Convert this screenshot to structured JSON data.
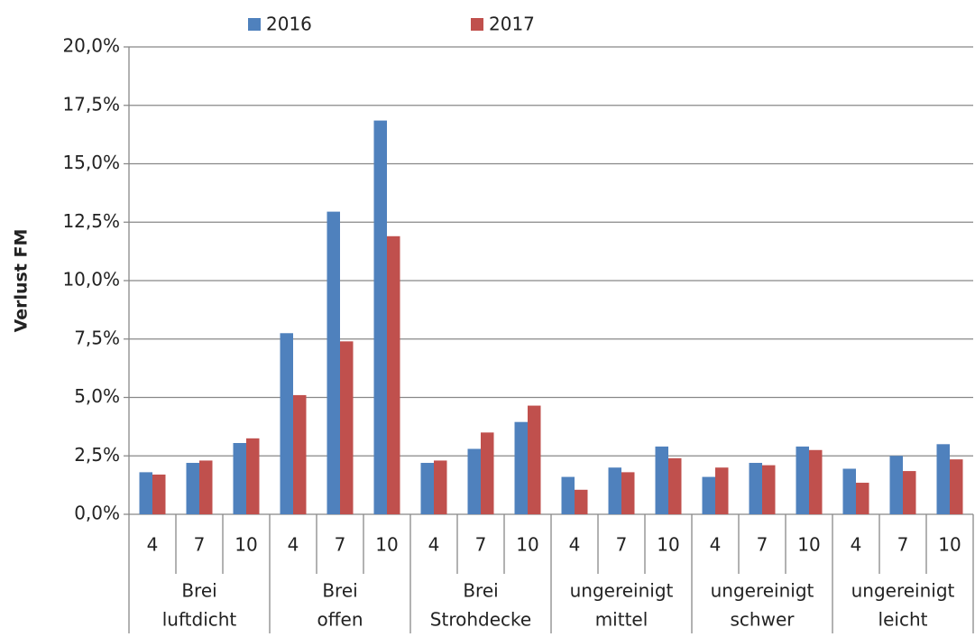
{
  "chart_data": {
    "type": "bar",
    "y_label": "Verlust FM",
    "categories": [
      "4",
      "7",
      "10",
      "4",
      "7",
      "10",
      "4",
      "7",
      "10",
      "4",
      "7",
      "10",
      "4",
      "7",
      "10",
      "4",
      "7",
      "10"
    ],
    "groups": [
      [
        "Brei",
        "luftdicht"
      ],
      [
        "Brei",
        "offen"
      ],
      [
        "Brei",
        "Strohdecke"
      ],
      [
        "ungereinigt",
        "mittel"
      ],
      [
        "ungereinigt",
        "schwer"
      ],
      [
        "ungereinigt",
        "leicht"
      ]
    ],
    "series": [
      {
        "name": "2016",
        "color": "#4f81bd",
        "values": [
          1.8,
          2.2,
          3.05,
          7.75,
          12.95,
          16.85,
          2.2,
          2.8,
          3.95,
          1.6,
          2.0,
          2.9,
          1.6,
          2.2,
          2.9,
          1.95,
          2.5,
          3.0
        ]
      },
      {
        "name": "2017",
        "color": "#c0504d",
        "values": [
          1.7,
          2.3,
          3.25,
          5.1,
          7.4,
          11.9,
          2.3,
          3.5,
          4.65,
          1.05,
          1.8,
          2.4,
          2.0,
          2.1,
          2.75,
          1.35,
          1.85,
          2.35
        ]
      }
    ],
    "ylim": [
      0,
      20
    ],
    "yticks": [
      {
        "value": 0,
        "label": "0,0%"
      },
      {
        "value": 2.5,
        "label": "2,5%"
      },
      {
        "value": 5,
        "label": "5,0%"
      },
      {
        "value": 7.5,
        "label": "7,5%"
      },
      {
        "value": 10,
        "label": "10,0%"
      },
      {
        "value": 12.5,
        "label": "12,5%"
      },
      {
        "value": 15,
        "label": "15,0%"
      },
      {
        "value": 17.5,
        "label": "17,5%"
      },
      {
        "value": 20,
        "label": "20,0%"
      }
    ],
    "grid": true
  }
}
